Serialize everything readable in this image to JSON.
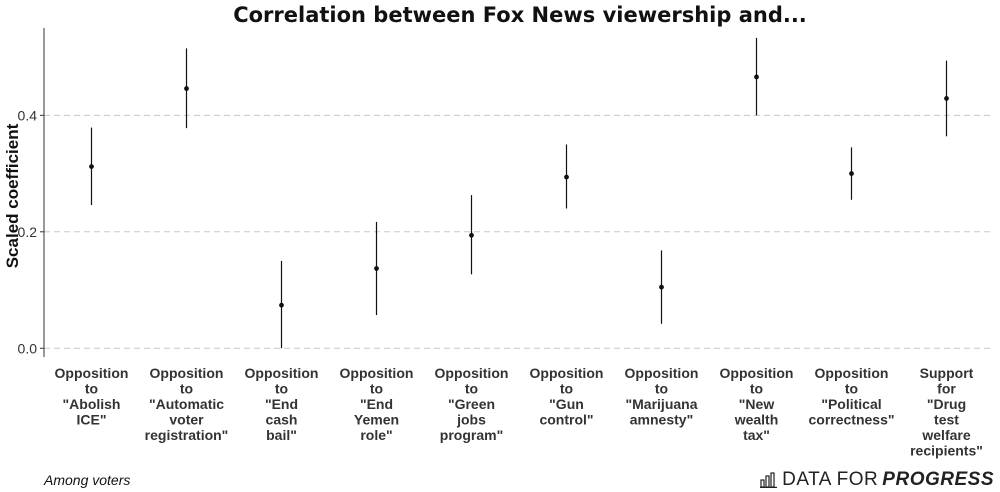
{
  "chart_data": {
    "type": "scatter",
    "title": "Correlation between Fox News viewership and...",
    "ylabel": "Scaled coefficient",
    "xlabel": "",
    "ylim": [
      -0.015,
      0.55
    ],
    "yticks": [
      "0.0",
      "0.2",
      "0.4"
    ],
    "ytick_values": [
      0.0,
      0.2,
      0.4
    ],
    "grid": "horizontal dashed",
    "categories": [
      [
        "Opposition",
        "to",
        "\"Abolish",
        "ICE\""
      ],
      [
        "Opposition",
        "to",
        "\"Automatic",
        "voter",
        "registration\""
      ],
      [
        "Opposition",
        "to",
        "\"End",
        "cash",
        "bail\""
      ],
      [
        "Opposition",
        "to",
        "\"End",
        "Yemen",
        "role\""
      ],
      [
        "Opposition",
        "to",
        "\"Green",
        "jobs",
        "program\""
      ],
      [
        "Opposition",
        "to",
        "\"Gun",
        "control\""
      ],
      [
        "Opposition",
        "to",
        "\"Marijuana",
        "amnesty\""
      ],
      [
        "Opposition",
        "to",
        "\"New",
        "wealth",
        "tax\""
      ],
      [
        "Opposition",
        "to",
        "\"Political",
        "correctness\""
      ],
      [
        "Support",
        "for",
        "\"Drug",
        "test",
        "welfare",
        "recipients\""
      ]
    ],
    "values": [
      0.312,
      0.446,
      0.074,
      0.137,
      0.194,
      0.294,
      0.105,
      0.466,
      0.3,
      0.429
    ],
    "lower": [
      0.246,
      0.378,
      0.0,
      0.057,
      0.127,
      0.24,
      0.042,
      0.4,
      0.255,
      0.364
    ],
    "upper": [
      0.379,
      0.515,
      0.15,
      0.217,
      0.263,
      0.35,
      0.168,
      0.533,
      0.345,
      0.494
    ]
  },
  "footer": {
    "caption": "Among voters",
    "brand_light": "DATA FOR",
    "brand_strong": "PROGRESS",
    "brand_icon": "bar-chart-icon"
  }
}
